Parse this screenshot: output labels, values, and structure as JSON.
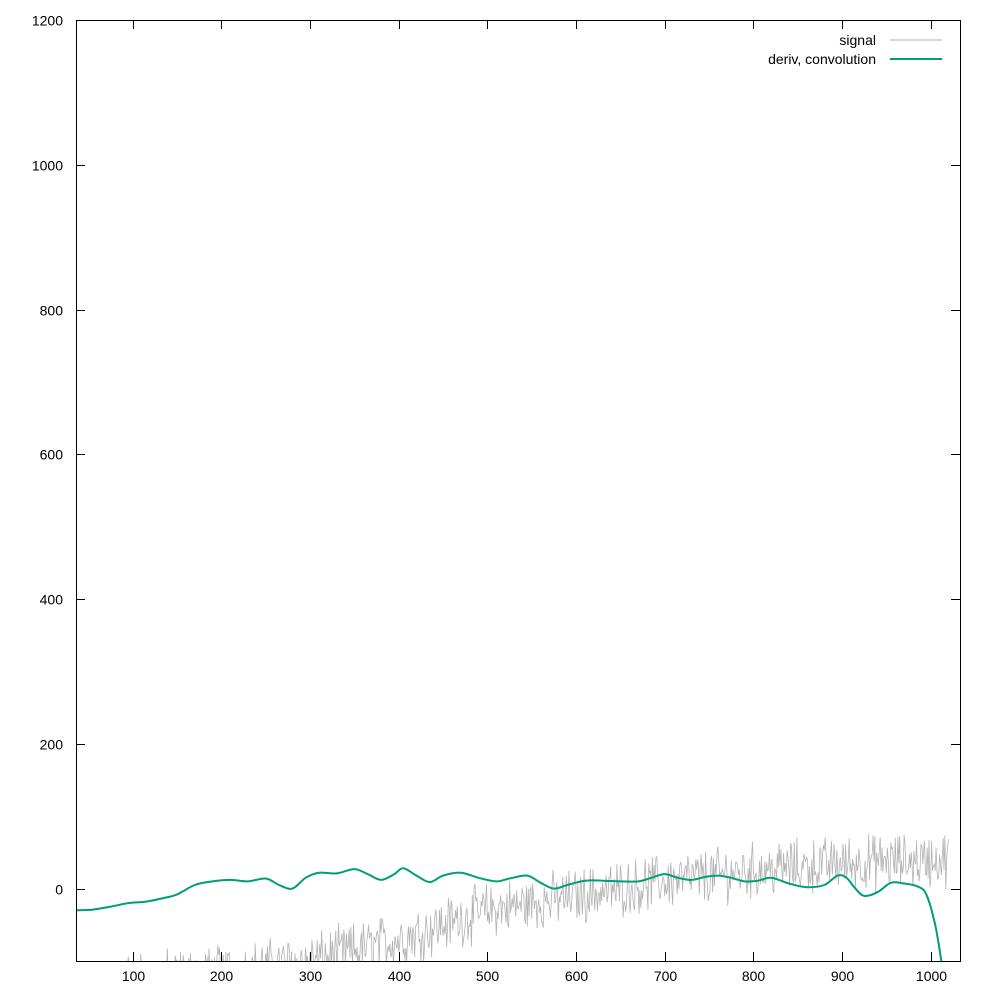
{
  "chart_data": {
    "type": "line",
    "title": "",
    "xlabel": "",
    "ylabel": "",
    "xlim": [
      36,
      1033
    ],
    "ylim": [
      -100,
      1200
    ],
    "x_ticks": [
      100,
      200,
      300,
      400,
      500,
      600,
      700,
      800,
      900,
      1000
    ],
    "y_ticks": [
      0,
      200,
      400,
      600,
      800,
      1000,
      1200
    ],
    "x_tick_labels": [
      "100",
      "200",
      "300",
      "400",
      "500",
      "600",
      "700",
      "800",
      "900",
      "1000"
    ],
    "y_tick_labels": [
      "0",
      "200",
      "400",
      "600",
      "800",
      "1000",
      "1200"
    ],
    "grid": false,
    "legend_position": "top-right",
    "series": [
      {
        "name": "signal",
        "color": "#b3b3b3",
        "style": "noisy",
        "trend": {
          "x": [
            36,
            100,
            200,
            300,
            400,
            500,
            600,
            700,
            800,
            900,
            1020
          ],
          "y": [
            -140,
            -125,
            -115,
            -100,
            -70,
            -30,
            -10,
            10,
            25,
            35,
            40
          ]
        },
        "noise_amplitude": 30,
        "x_end": 1020
      },
      {
        "name": "deriv, convolution",
        "color": "#009e73",
        "style": "smooth",
        "x": [
          36,
          55,
          75,
          95,
          115,
          135,
          150,
          170,
          190,
          210,
          230,
          250,
          265,
          280,
          295,
          310,
          330,
          350,
          365,
          380,
          395,
          405,
          420,
          435,
          450,
          470,
          490,
          510,
          525,
          545,
          560,
          575,
          590,
          610,
          630,
          650,
          670,
          685,
          700,
          715,
          730,
          745,
          760,
          775,
          790,
          805,
          820,
          840,
          860,
          880,
          895,
          905,
          915,
          925,
          940,
          955,
          970,
          985,
          995,
          1005,
          1012
        ],
        "y": [
          -30,
          -29,
          -25,
          -20,
          -18,
          -13,
          -8,
          5,
          10,
          12,
          10,
          14,
          5,
          0,
          15,
          22,
          21,
          27,
          20,
          12,
          20,
          28,
          18,
          9,
          18,
          22,
          15,
          10,
          14,
          18,
          8,
          0,
          5,
          11,
          11,
          10,
          10,
          15,
          20,
          15,
          12,
          16,
          18,
          15,
          10,
          11,
          15,
          7,
          2,
          5,
          18,
          15,
          0,
          -10,
          -5,
          8,
          7,
          3,
          -8,
          -50,
          -100
        ]
      }
    ]
  }
}
